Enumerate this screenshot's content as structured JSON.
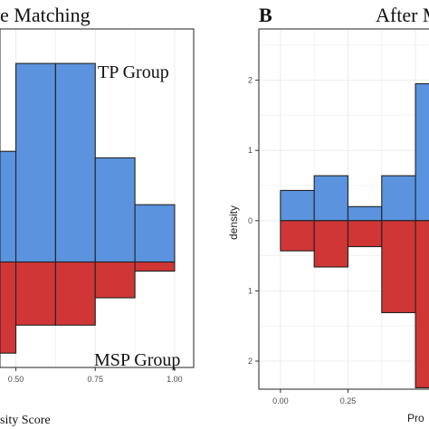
{
  "panels": {
    "left": {
      "title": "e Matching",
      "group_top": "TP Group",
      "group_bottom": "MSP Group",
      "xlabel": "sity Score"
    },
    "right": {
      "letter": "B",
      "title": "After M",
      "ylabel": "density",
      "xlabel": "Pro"
    }
  },
  "colors": {
    "top": "#5B93DE",
    "bottom": "#D03636",
    "grid": "#EBEBEB",
    "border": "#222222",
    "text": "#333333",
    "axis_text": "#4D4D4D"
  },
  "chart_data": [
    {
      "type": "bar",
      "title": "e Matching",
      "xlabel": "sity Score",
      "x_ticks": [
        "0.50",
        "0.75",
        "1.00"
      ],
      "x_tick_values": [
        0.5,
        0.75,
        1.0
      ],
      "bin_width": 0.125,
      "series": [
        {
          "name": "TP Group",
          "direction": "up",
          "bin_starts": [
            0.375,
            0.5,
            0.625,
            0.75,
            0.875
          ],
          "values": [
            1.7,
            3.05,
            3.05,
            1.6,
            0.88
          ]
        },
        {
          "name": "MSP Group",
          "direction": "down",
          "bin_starts": [
            0.375,
            0.5,
            0.625,
            0.75,
            0.875
          ],
          "values": [
            1.4,
            0.97,
            0.97,
            0.55,
            0.14
          ]
        }
      ],
      "xlim": [
        0.45,
        1.06
      ],
      "ylim": [
        -1.62,
        3.58
      ],
      "grid": true
    },
    {
      "type": "bar",
      "title": "After M",
      "xlabel": "Pro",
      "ylabel": "density",
      "x_ticks": [
        "0.00",
        "0.25"
      ],
      "x_tick_values": [
        0.0,
        0.25
      ],
      "y_ticks": [
        "2",
        "1",
        "0",
        "1",
        "2"
      ],
      "y_tick_values": [
        2,
        1,
        0,
        -1,
        -2
      ],
      "bin_width": 0.125,
      "series": [
        {
          "direction": "up",
          "bin_starts": [
            0.0,
            0.125,
            0.25,
            0.375,
            0.5
          ],
          "values": [
            0.43,
            0.64,
            0.2,
            0.64,
            1.95
          ]
        },
        {
          "direction": "down",
          "bin_starts": [
            0.0,
            0.125,
            0.25,
            0.375,
            0.5
          ],
          "values": [
            0.43,
            0.66,
            0.37,
            1.31,
            2.38
          ]
        }
      ],
      "xlim": [
        -0.08,
        0.55
      ],
      "ylim": [
        -2.4,
        2.73
      ],
      "grid": true
    }
  ]
}
